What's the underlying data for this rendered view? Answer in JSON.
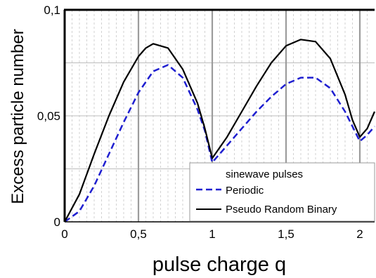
{
  "chart_data": {
    "type": "line",
    "title": "",
    "xlabel": "pulse charge q",
    "ylabel": "Excess particle number",
    "xlim": [
      0,
      2.1
    ],
    "ylim": [
      0,
      0.1
    ],
    "x_ticks": [
      {
        "value": 0,
        "label": "0"
      },
      {
        "value": 0.5,
        "label": "0,5"
      },
      {
        "value": 1,
        "label": "1"
      },
      {
        "value": 1.5,
        "label": "1,5"
      },
      {
        "value": 2,
        "label": "2"
      }
    ],
    "y_ticks": [
      {
        "value": 0,
        "label": "0"
      },
      {
        "value": 0.05,
        "label": "0,05"
      },
      {
        "value": 0.1,
        "label": "0,1"
      }
    ],
    "grid": true,
    "legend": {
      "title": "sinewave pulses",
      "position": "bottom-right"
    },
    "series": [
      {
        "name": "Periodic",
        "color": "#1f1fd0",
        "style": "dashed",
        "x": [
          0,
          0.1,
          0.2,
          0.3,
          0.4,
          0.5,
          0.6,
          0.7,
          0.8,
          0.9,
          0.95,
          1.0,
          1.1,
          1.2,
          1.3,
          1.4,
          1.5,
          1.6,
          1.7,
          1.8,
          1.9,
          1.95,
          2.0,
          2.05,
          2.1
        ],
        "y": [
          0,
          0.005,
          0.017,
          0.032,
          0.047,
          0.061,
          0.071,
          0.074,
          0.068,
          0.053,
          0.043,
          0.028,
          0.036,
          0.044,
          0.052,
          0.059,
          0.065,
          0.068,
          0.068,
          0.063,
          0.052,
          0.045,
          0.038,
          0.041,
          0.045
        ]
      },
      {
        "name": "Pseudo Random Binary",
        "color": "#000000",
        "style": "solid",
        "x": [
          0,
          0.1,
          0.2,
          0.3,
          0.4,
          0.5,
          0.55,
          0.6,
          0.7,
          0.8,
          0.9,
          0.95,
          1.0,
          1.1,
          1.2,
          1.3,
          1.4,
          1.5,
          1.6,
          1.7,
          1.8,
          1.9,
          1.95,
          2.0,
          2.05,
          2.1
        ],
        "y": [
          0,
          0.013,
          0.032,
          0.05,
          0.066,
          0.078,
          0.082,
          0.084,
          0.082,
          0.072,
          0.056,
          0.044,
          0.03,
          0.04,
          0.052,
          0.064,
          0.075,
          0.083,
          0.086,
          0.085,
          0.077,
          0.06,
          0.048,
          0.04,
          0.044,
          0.052
        ]
      }
    ]
  }
}
